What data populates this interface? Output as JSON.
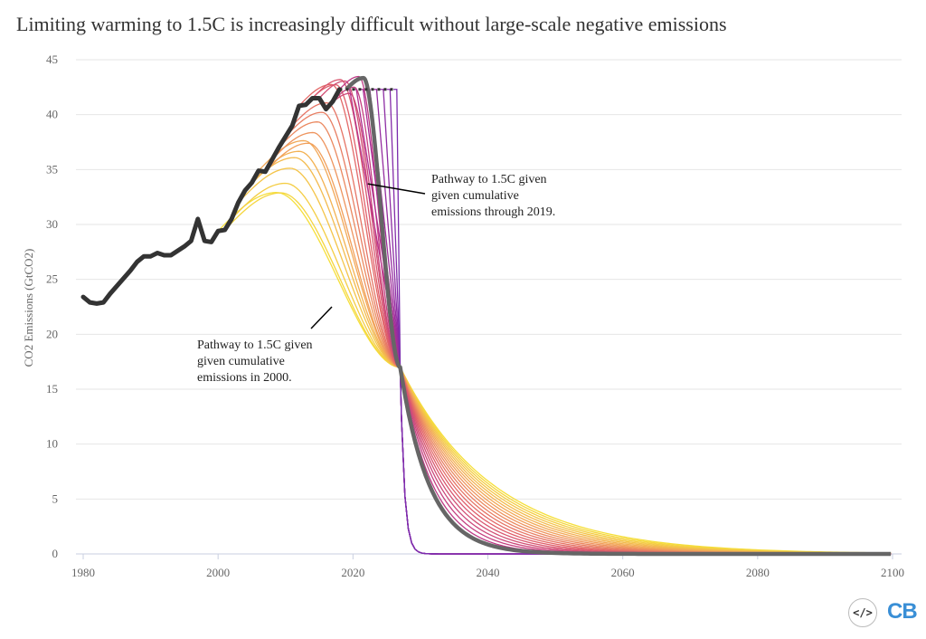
{
  "chart_data": {
    "type": "line",
    "title": "Limiting warming to 1.5C is increasingly difficult without large-scale negative emissions",
    "ylabel": "CO2 Emissions (GtCO2)",
    "xlabel": "",
    "xlim": [
      1979,
      2102
    ],
    "ylim": [
      0,
      45
    ],
    "x_ticks": [
      1980,
      2000,
      2020,
      2040,
      2060,
      2080,
      2100
    ],
    "y_ticks": [
      0,
      5,
      10,
      15,
      20,
      25,
      30,
      35,
      40,
      45
    ],
    "grid": "horizontal",
    "historical": {
      "name": "",
      "color": "#333333",
      "x": [
        1980,
        1981,
        1982,
        1983,
        1984,
        1985,
        1986,
        1987,
        1988,
        1989,
        1990,
        1991,
        1992,
        1993,
        1994,
        1995,
        1996,
        1997,
        1998,
        1999,
        2000,
        2001,
        2002,
        2003,
        2004,
        2005,
        2006,
        2007,
        2008,
        2009,
        2010,
        2011,
        2012,
        2013,
        2014,
        2015,
        2016,
        2017,
        2018
      ],
      "y": [
        23.4,
        22.9,
        22.8,
        22.9,
        23.7,
        24.4,
        25.1,
        25.8,
        26.6,
        27.1,
        27.1,
        27.4,
        27.2,
        27.2,
        27.6,
        28.0,
        28.5,
        30.5,
        28.5,
        28.4,
        29.4,
        29.5,
        30.5,
        32.0,
        33.1,
        33.8,
        34.9,
        34.8,
        35.9,
        37.0,
        38.0,
        39.0,
        40.8,
        40.9,
        41.5,
        41.5,
        40.5,
        41.2,
        42.3
      ]
    },
    "hold_segment": {
      "x": [
        2018,
        2026
      ],
      "y": [
        42.3,
        42.3
      ],
      "color": "#333333"
    },
    "pathways": {
      "count": 27,
      "start_years": [
        2000,
        2026
      ],
      "converge": {
        "x": 2027,
        "y": 17.0
      },
      "end_x": 2100,
      "colors_from_to": [
        "#f5df3a",
        "#f2a45a",
        "#e05e6a",
        "#b42f8f",
        "#7b2cae"
      ]
    },
    "highlighted_pathway": {
      "name": "",
      "start_year": 2019,
      "color": "#666666"
    },
    "annotations": [
      {
        "text_lines": [
          "Pathway to 1.5C given",
          "given cumulative",
          "emissions through 2019."
        ]
      },
      {
        "text_lines": [
          "Pathway to 1.5C given",
          "given cumulative",
          "emissions in 2000."
        ]
      }
    ]
  },
  "logo": {
    "embed_glyph": "</>",
    "brand": "CB"
  }
}
